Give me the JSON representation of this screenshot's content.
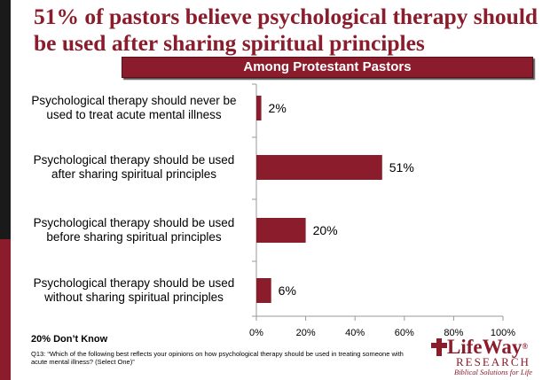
{
  "title": "51% of pastors believe psychological therapy should be used after sharing spiritual  principles",
  "banner": "Among Protestant Pastors",
  "footer_note": "20% Don’t Know",
  "question": "Q13: “Which of the following best reflects your opinions on how psychological therapy should be used in treating someone with acute mental illness? (Select One)”",
  "logo": {
    "main": "LifeWay",
    "registered": "®",
    "sub": "RESEARCH",
    "tagline": "Biblical Solutions for Life"
  },
  "colors": {
    "bar": "#8b1c2b",
    "accent": "#8b1c2b"
  },
  "chart_data": {
    "type": "bar",
    "orientation": "horizontal",
    "categories": [
      [
        "Psychological therapy should never be",
        "used to treat acute mental illness"
      ],
      [
        "Psychological therapy should be used",
        "after sharing spiritual principles"
      ],
      [
        "Psychological therapy should be used",
        "before sharing spiritual principles"
      ],
      [
        "Psychological therapy should be used",
        "without sharing spiritual principles"
      ]
    ],
    "values": [
      2,
      51,
      20,
      6
    ],
    "data_labels": [
      "2%",
      "51%",
      "20%",
      "6%"
    ],
    "xlim": [
      0,
      100
    ],
    "xticks": [
      0,
      20,
      40,
      60,
      80,
      100
    ],
    "xtick_labels": [
      "0%",
      "20%",
      "40%",
      "60%",
      "80%",
      "100%"
    ],
    "grid": false
  }
}
